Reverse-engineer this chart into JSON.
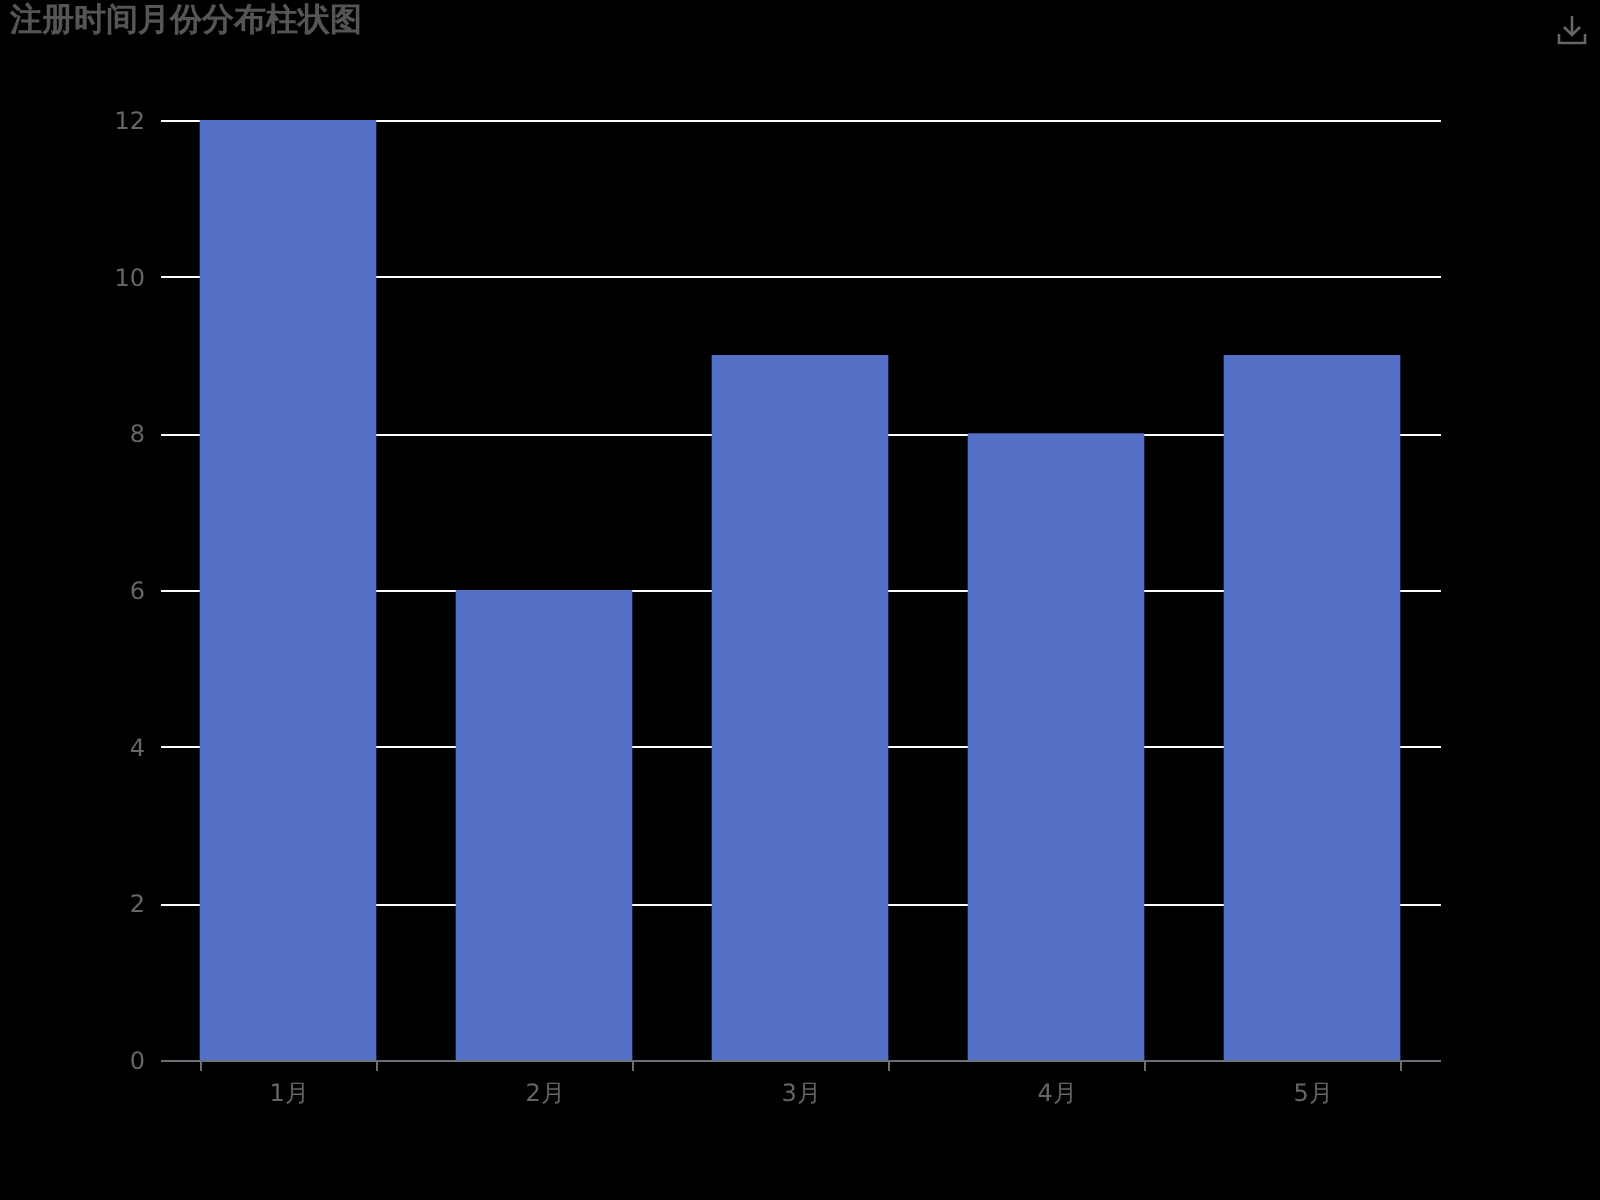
{
  "chart_data": {
    "type": "bar",
    "title": "注册时间月份分布柱状图",
    "categories": [
      "1月",
      "2月",
      "3月",
      "4月",
      "5月"
    ],
    "values": [
      12,
      6,
      9,
      8,
      9
    ],
    "color": "#5470c6",
    "ylim": [
      0,
      12
    ],
    "yticks": [
      0,
      2,
      4,
      6,
      8,
      10,
      12
    ],
    "grid": "y"
  }
}
